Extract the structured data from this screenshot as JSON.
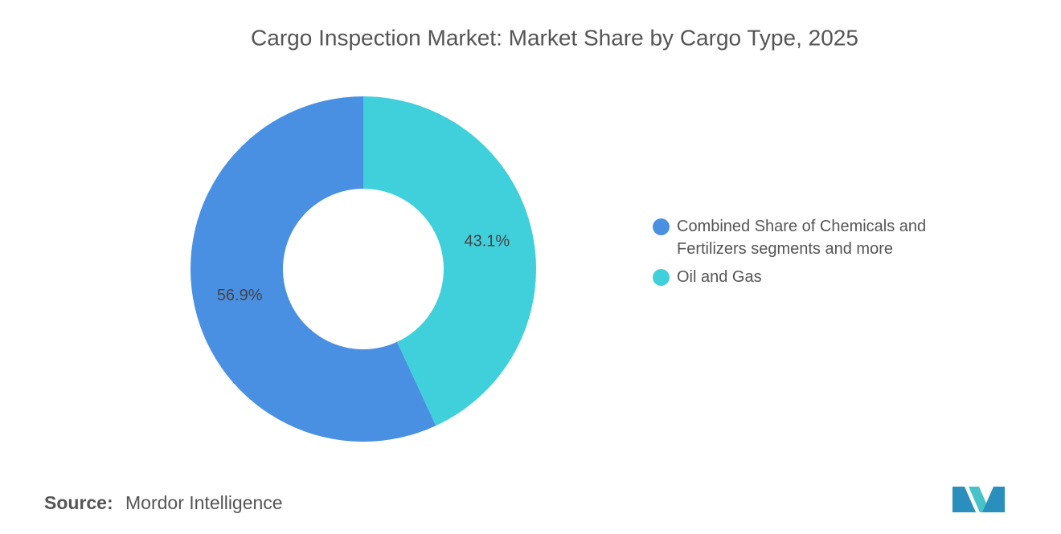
{
  "chart_data": {
    "type": "pie",
    "title": "Cargo Inspection Market: Market Share by Cargo Type, 2025",
    "categories": [
      "Combined Share of Chemicals and Fertilizers segments and more",
      "Oil and Gas"
    ],
    "values": [
      56.9,
      43.1
    ],
    "value_labels": [
      "56.9%",
      "43.1%"
    ],
    "colors": [
      "#4a90e2",
      "#40d0dc"
    ],
    "donut": true,
    "source_label": "Source:",
    "source": "Mordor Intelligence"
  }
}
